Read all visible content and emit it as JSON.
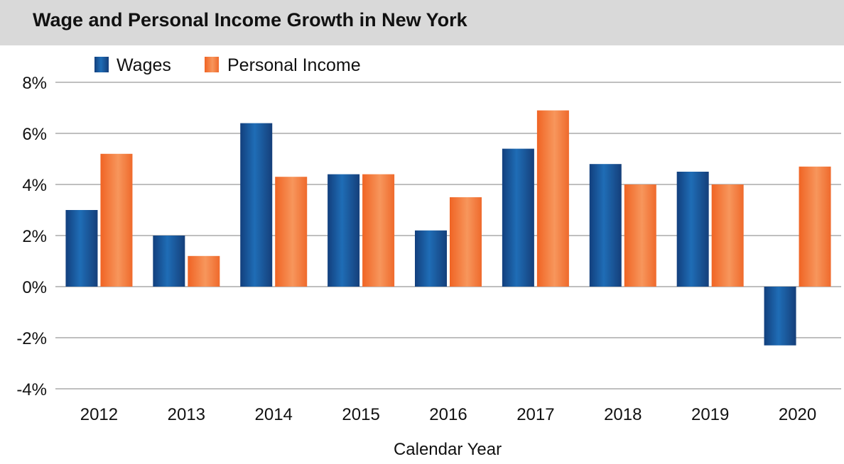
{
  "chart_data": {
    "type": "bar",
    "title": "Wage and Personal Income Growth in New York",
    "xlabel": "Calendar Year",
    "ylabel": "",
    "categories": [
      "2012",
      "2013",
      "2014",
      "2015",
      "2016",
      "2017",
      "2018",
      "2019",
      "2020"
    ],
    "series": [
      {
        "name": "Wages",
        "color": "#1f5fa6",
        "values": [
          3.0,
          2.0,
          6.4,
          4.4,
          2.2,
          5.4,
          4.8,
          4.5,
          -2.3
        ]
      },
      {
        "name": "Personal Income",
        "color": "#f37a3d",
        "values": [
          5.2,
          1.2,
          4.3,
          4.4,
          3.5,
          6.9,
          4.0,
          4.0,
          4.7
        ]
      }
    ],
    "ylim": [
      -4,
      8
    ],
    "yticks": [
      -4,
      -2,
      0,
      2,
      4,
      6,
      8
    ],
    "ytick_labels": [
      "-4%",
      "-2%",
      "0%",
      "2%",
      "4%",
      "6%",
      "8%"
    ],
    "grid": true,
    "legend": "top-left"
  }
}
